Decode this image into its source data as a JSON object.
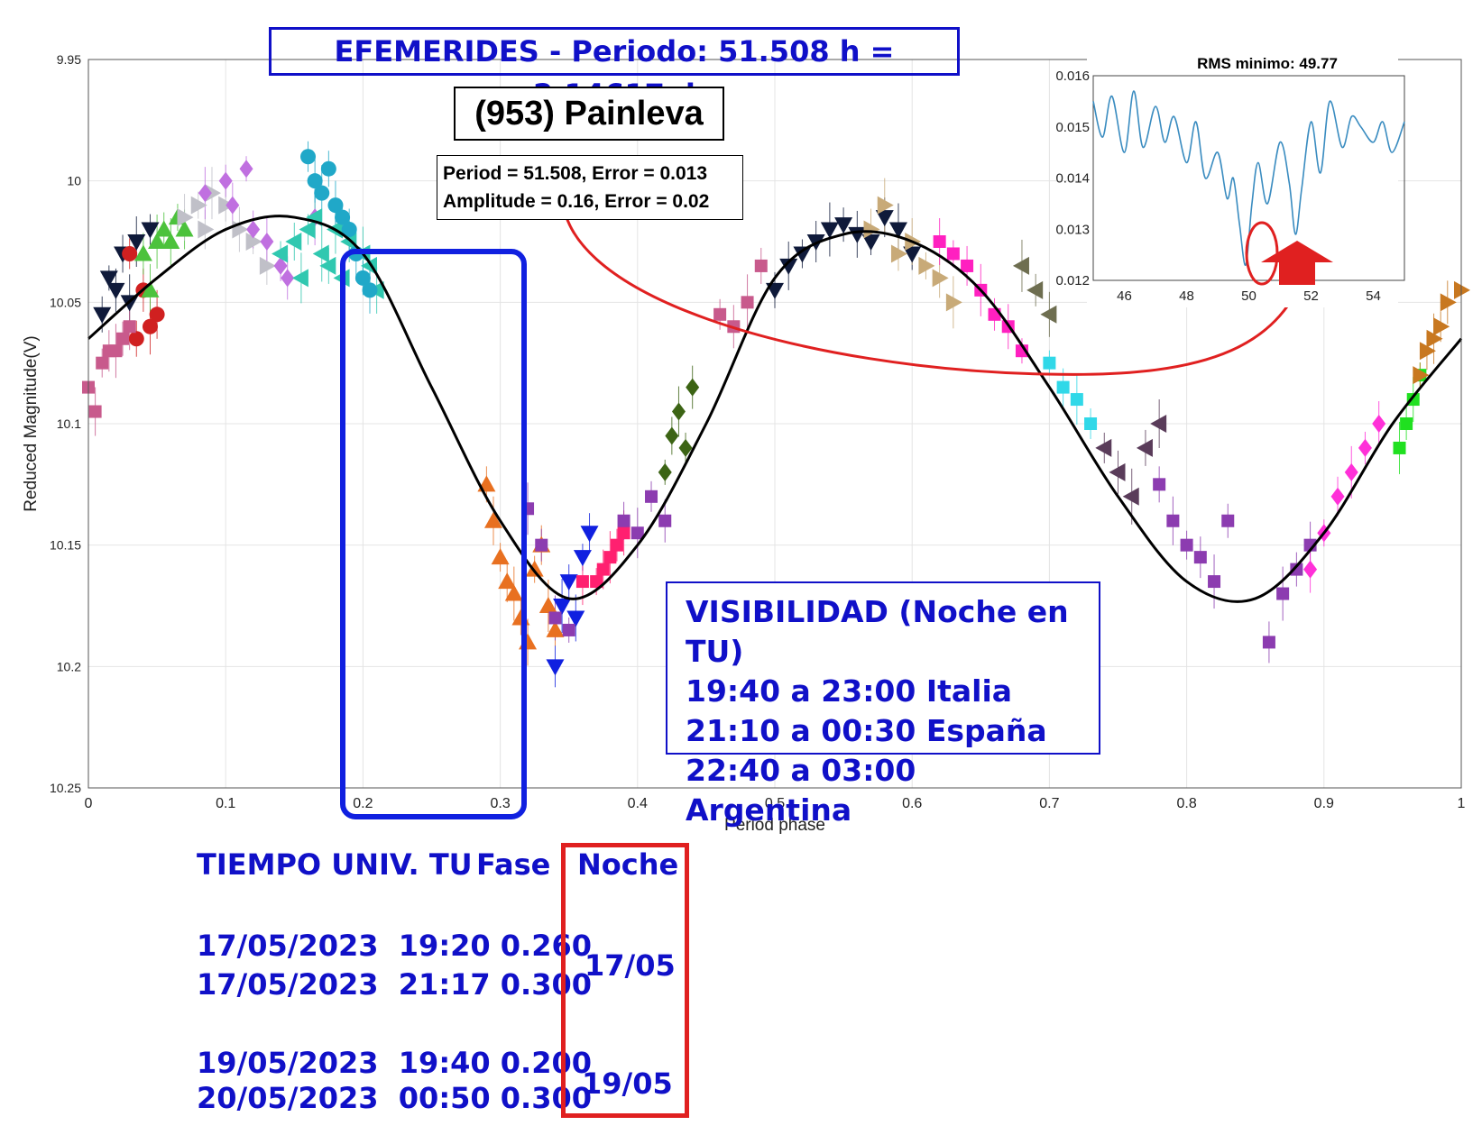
{
  "chart_data": {
    "type": "scatter",
    "xlabel": "Period phase",
    "ylabel": "Reduced Magnitude(V)",
    "xlim": [
      0,
      1
    ],
    "ylim": [
      9.95,
      10.25
    ],
    "y_reversed": true,
    "x_ticks": [
      "0",
      "0.1",
      "0.2",
      "0.3",
      "0.4",
      "0.5",
      "0.6",
      "0.7",
      "0.8",
      "0.9",
      "1"
    ],
    "y_ticks": [
      "9.95",
      "10",
      "10.05",
      "10.1",
      "10.15",
      "10.2",
      "10.25"
    ],
    "grid": true,
    "fit_curve": {
      "color": "#000000",
      "x": [
        0,
        0.05,
        0.1,
        0.15,
        0.2,
        0.25,
        0.3,
        0.35,
        0.4,
        0.45,
        0.5,
        0.55,
        0.6,
        0.65,
        0.7,
        0.75,
        0.8,
        0.85,
        0.9,
        0.95,
        1.0
      ],
      "y": [
        10.065,
        10.04,
        10.02,
        10.015,
        10.03,
        10.085,
        10.14,
        10.172,
        10.15,
        10.1,
        10.04,
        10.022,
        10.025,
        10.045,
        10.085,
        10.13,
        10.165,
        10.172,
        10.145,
        10.1,
        10.065
      ]
    },
    "observations": [
      {
        "color": "#0f1a3a",
        "shape": "triangle-down",
        "x": [
          0.015,
          0.025,
          0.035,
          0.045,
          0.02,
          0.03,
          0.01
        ],
        "y": [
          10.04,
          10.03,
          10.025,
          10.02,
          10.045,
          10.05,
          10.055
        ]
      },
      {
        "color": "#d02020",
        "shape": "circle",
        "x": [
          0.03,
          0.04,
          0.045,
          0.035,
          0.05
        ],
        "y": [
          10.03,
          10.045,
          10.06,
          10.065,
          10.055
        ]
      },
      {
        "color": "#c85a8c",
        "shape": "square",
        "x": [
          0.0,
          0.005,
          0.01,
          0.015,
          0.02,
          0.025,
          0.03
        ],
        "y": [
          10.085,
          10.095,
          10.075,
          10.07,
          10.07,
          10.065,
          10.06
        ]
      },
      {
        "color": "#4cc23c",
        "shape": "triangle-up",
        "x": [
          0.04,
          0.05,
          0.055,
          0.06,
          0.065,
          0.07,
          0.045
        ],
        "y": [
          10.03,
          10.025,
          10.02,
          10.025,
          10.015,
          10.02,
          10.045
        ]
      },
      {
        "color": "#c0c0c8",
        "shape": "triangle-right",
        "x": [
          0.07,
          0.08,
          0.085,
          0.09,
          0.1,
          0.11,
          0.12,
          0.13
        ],
        "y": [
          10.015,
          10.01,
          10.02,
          10.005,
          10.01,
          10.02,
          10.025,
          10.035
        ]
      },
      {
        "color": "#c070e0",
        "shape": "diamond",
        "x": [
          0.085,
          0.1,
          0.105,
          0.115,
          0.12,
          0.13,
          0.14,
          0.145,
          0.165
        ],
        "y": [
          10.005,
          10.0,
          10.01,
          9.995,
          10.02,
          10.025,
          10.035,
          10.04,
          10.015
        ]
      },
      {
        "color": "#30c8b0",
        "shape": "triangle-left",
        "x": [
          0.14,
          0.15,
          0.155,
          0.16,
          0.165,
          0.17,
          0.175,
          0.18,
          0.185,
          0.19,
          0.2,
          0.205,
          0.21
        ],
        "y": [
          10.03,
          10.025,
          10.04,
          10.02,
          10.015,
          10.03,
          10.035,
          10.02,
          10.04,
          10.025,
          10.03,
          10.035,
          10.045
        ]
      },
      {
        "color": "#20a8c8",
        "shape": "circle",
        "x": [
          0.16,
          0.165,
          0.17,
          0.175,
          0.18,
          0.185,
          0.19,
          0.195,
          0.2,
          0.205
        ],
        "y": [
          9.99,
          10.0,
          10.005,
          9.995,
          10.01,
          10.015,
          10.02,
          10.03,
          10.04,
          10.045
        ]
      },
      {
        "color": "#e87020",
        "shape": "triangle-up",
        "x": [
          0.29,
          0.295,
          0.3,
          0.305,
          0.31,
          0.315,
          0.32,
          0.325,
          0.33,
          0.335,
          0.34
        ],
        "y": [
          10.125,
          10.14,
          10.155,
          10.165,
          10.17,
          10.18,
          10.19,
          10.16,
          10.15,
          10.175,
          10.185
        ]
      },
      {
        "color": "#1020e0",
        "shape": "triangle-down",
        "x": [
          0.34,
          0.345,
          0.35,
          0.355,
          0.36,
          0.365
        ],
        "y": [
          10.2,
          10.175,
          10.165,
          10.18,
          10.155,
          10.145
        ]
      },
      {
        "color": "#ff2070",
        "shape": "square",
        "x": [
          0.36,
          0.37,
          0.375,
          0.38,
          0.385,
          0.39
        ],
        "y": [
          10.165,
          10.165,
          10.16,
          10.155,
          10.15,
          10.145
        ]
      },
      {
        "color": "#8c3cb0",
        "shape": "square",
        "x": [
          0.32,
          0.33,
          0.34,
          0.35,
          0.39,
          0.4,
          0.41,
          0.42
        ],
        "y": [
          10.135,
          10.15,
          10.18,
          10.185,
          10.14,
          10.145,
          10.13,
          10.14
        ]
      },
      {
        "color": "#3c6414",
        "shape": "diamond",
        "x": [
          0.42,
          0.425,
          0.43,
          0.435,
          0.44
        ],
        "y": [
          10.12,
          10.105,
          10.095,
          10.11,
          10.085
        ]
      },
      {
        "color": "#c85a8c",
        "shape": "square",
        "x": [
          0.46,
          0.47,
          0.48,
          0.49
        ],
        "y": [
          10.055,
          10.06,
          10.05,
          10.035
        ]
      },
      {
        "color": "#0f1a3a",
        "shape": "triangle-down",
        "x": [
          0.5,
          0.51,
          0.52,
          0.53,
          0.54,
          0.55,
          0.56,
          0.57,
          0.58,
          0.59,
          0.6
        ],
        "y": [
          10.045,
          10.035,
          10.03,
          10.025,
          10.02,
          10.018,
          10.022,
          10.025,
          10.015,
          10.02,
          10.03
        ]
      },
      {
        "color": "#c8aa78",
        "shape": "triangle-right",
        "x": [
          0.57,
          0.58,
          0.59,
          0.6,
          0.61,
          0.62,
          0.63
        ],
        "y": [
          10.02,
          10.01,
          10.03,
          10.025,
          10.035,
          10.04,
          10.05
        ]
      },
      {
        "color": "#ff20c0",
        "shape": "square",
        "x": [
          0.62,
          0.63,
          0.64,
          0.65,
          0.66,
          0.67,
          0.68
        ],
        "y": [
          10.025,
          10.03,
          10.035,
          10.045,
          10.055,
          10.06,
          10.07
        ]
      },
      {
        "color": "#6e6e50",
        "shape": "triangle-left",
        "x": [
          0.68,
          0.69,
          0.7
        ],
        "y": [
          10.035,
          10.045,
          10.055
        ]
      },
      {
        "color": "#30d8e8",
        "shape": "square",
        "x": [
          0.7,
          0.71,
          0.72,
          0.73
        ],
        "y": [
          10.075,
          10.085,
          10.09,
          10.1
        ]
      },
      {
        "color": "#5a3c5a",
        "shape": "triangle-left",
        "x": [
          0.74,
          0.75,
          0.76,
          0.77,
          0.78
        ],
        "y": [
          10.11,
          10.12,
          10.13,
          10.11,
          10.1
        ]
      },
      {
        "color": "#8c3cb0",
        "shape": "square",
        "x": [
          0.78,
          0.79,
          0.8,
          0.81,
          0.82,
          0.83
        ],
        "y": [
          10.125,
          10.14,
          10.15,
          10.155,
          10.165,
          10.14
        ]
      },
      {
        "color": "#8c3cb0",
        "shape": "square",
        "x": [
          0.86,
          0.87,
          0.88,
          0.89
        ],
        "y": [
          10.19,
          10.17,
          10.16,
          10.15
        ]
      },
      {
        "color": "#ff30d8",
        "shape": "diamond",
        "x": [
          0.89,
          0.9,
          0.91,
          0.92,
          0.93,
          0.94
        ],
        "y": [
          10.16,
          10.145,
          10.13,
          10.12,
          10.11,
          10.1
        ]
      },
      {
        "color": "#20e020",
        "shape": "square",
        "x": [
          0.955,
          0.96,
          0.965,
          0.97
        ],
        "y": [
          10.11,
          10.1,
          10.09,
          10.08
        ]
      },
      {
        "color": "#c87820",
        "shape": "triangle-right",
        "x": [
          0.97,
          0.975,
          0.98,
          0.985,
          0.99,
          1.0
        ],
        "y": [
          10.08,
          10.07,
          10.065,
          10.06,
          10.05,
          10.045
        ]
      }
    ]
  },
  "inset_chart": {
    "type": "line",
    "title": "RMS minimo: 49.77",
    "xlim": [
      45,
      55
    ],
    "ylim": [
      0.012,
      0.016
    ],
    "x_ticks": [
      "46",
      "48",
      "50",
      "52",
      "54"
    ],
    "y_ticks": [
      "0.016",
      "0.015",
      "0.014",
      "0.013",
      "0.012"
    ],
    "line_color": "#3a8cc0",
    "x": [
      45,
      45.3,
      45.6,
      46,
      46.3,
      46.6,
      47,
      47.3,
      47.6,
      48,
      48.3,
      48.6,
      49,
      49.3,
      49.5,
      49.7,
      49.9,
      50.1,
      50.3,
      50.6,
      51,
      51.3,
      51.5,
      51.7,
      52,
      52.3,
      52.6,
      53,
      53.3,
      53.6,
      54,
      54.3,
      54.6,
      55
    ],
    "y": [
      0.0155,
      0.0148,
      0.0156,
      0.0145,
      0.0157,
      0.0146,
      0.0154,
      0.0147,
      0.0152,
      0.0143,
      0.0151,
      0.014,
      0.0145,
      0.0136,
      0.014,
      0.0131,
      0.0123,
      0.0135,
      0.0143,
      0.0135,
      0.0147,
      0.0139,
      0.0129,
      0.0138,
      0.0151,
      0.0141,
      0.0155,
      0.0146,
      0.0152,
      0.015,
      0.0147,
      0.0151,
      0.0145,
      0.0151
    ]
  },
  "annotations": {
    "title": "EFEMERIDES - Periodo: 51.508 h = 2.14617 d",
    "object_name": "(953) Painleva",
    "fit_line1": "Period =  51.508, Error = 0.013",
    "fit_line2": "Amplitude = 0.16, Error = 0.02",
    "visibility": [
      "VISIBILIDAD (Noche en TU)",
      "19:40 a 23:00 Italia",
      "21:10 a 00:30 España",
      "22:40 a 03:00 Argentina"
    ]
  },
  "table": {
    "header_time": "TIEMPO UNIV. TU",
    "header_phase": "Fase",
    "header_night": "Noche",
    "rows": [
      "17/05/2023  19:20 0.260",
      "17/05/2023  21:17 0.300",
      "19/05/2023  19:40 0.200",
      "20/05/2023  00:50 0.300"
    ],
    "nights": [
      "17/05",
      "19/05"
    ]
  },
  "colors": {
    "blue_text": "#1010c8",
    "red_highlight": "#e02020",
    "blue_box": "#1020e0"
  }
}
